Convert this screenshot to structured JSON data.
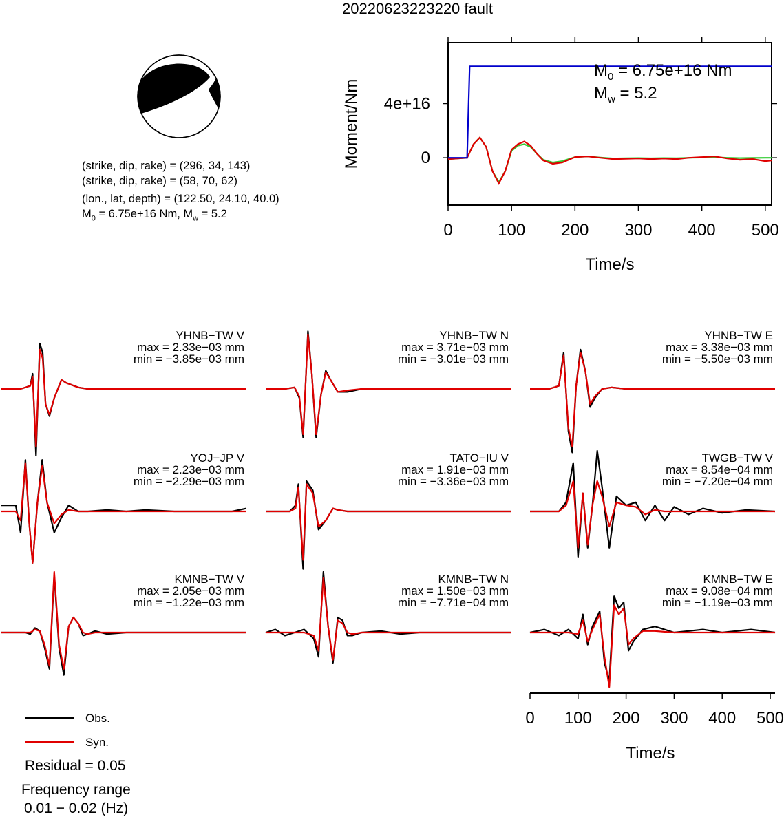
{
  "title": "20220623223220 fault",
  "info": {
    "line1": "(strike, dip, rake) = (296, 34, 143)",
    "line2": "(strike, dip, rake) = (58, 70, 62)",
    "line3": "(lon., lat, depth) = (122.50, 24.10, 40.0)",
    "m0_prefix": "M",
    "m0_sub": "0",
    "m0_value": " = 6.75e+16 Nm, M",
    "mw_sub": "w",
    "mw_value": " = 5.2"
  },
  "moment_rate": {
    "ylabel": "Moment/Nm",
    "xlabel": "Time/s",
    "m0_prefix": "M",
    "m0_sub": "0",
    "m0_text": " = 6.75e+16 Nm",
    "mw_prefix": "M",
    "mw_sub": "w",
    "mw_text": " = 5.2"
  },
  "waveform_axis": {
    "xlabel": "Time/s"
  },
  "legend": {
    "obs_label": "Obs.",
    "syn_label": "Syn.",
    "obs_color": "#000000",
    "syn_color": "#e00000",
    "residual": "Residual = 0.05",
    "freq_title": "Frequency range",
    "freq_value": "0.01 − 0.02 (Hz)"
  },
  "colors": {
    "cumulative_moment": "#0000cc",
    "moment_rate_red": "#e00000",
    "moment_rate_green": "#33cc33",
    "observed": "#000000",
    "synthetic": "#e00000"
  },
  "chart_data": [
    {
      "type": "line",
      "name": "moment_function",
      "ylabel": "Moment/Nm",
      "xlabel": "Time/s",
      "xlim": [
        0,
        510
      ],
      "ylim": [
        -3.5e+16,
        8.5e+16
      ],
      "xticks": [
        0,
        100,
        200,
        300,
        400,
        500
      ],
      "xtick_labels": [
        "0",
        "100",
        "200",
        "300",
        "400",
        "500"
      ],
      "yticks": [
        0,
        4e+16
      ],
      "ytick_labels": [
        "0",
        "4e+16"
      ],
      "series": [
        {
          "name": "",
          "x": [
            0,
            30,
            34,
            36,
            510
          ],
          "y": [
            0,
            0,
            6.75e+16,
            6.75e+16,
            6.75e+16
          ]
        },
        {
          "name": "",
          "x": [
            0,
            30,
            40,
            50,
            60,
            70,
            80,
            90,
            100,
            110,
            120,
            130,
            140,
            150,
            165,
            180,
            200,
            220,
            240,
            260,
            280,
            300,
            320,
            340,
            360,
            380,
            400,
            420,
            440,
            460,
            480,
            500,
            510
          ],
          "y": [
            -1000000000000000.0,
            0,
            1e+16,
            1.5e+16,
            8000000000000000.0,
            -1e+16,
            -1.9e+16,
            -1e+16,
            6000000000000000.0,
            1e+16,
            1.2e+16,
            9000000000000000.0,
            3000000000000000.0,
            -2000000000000000.0,
            -4500000000000000.0,
            -3500000000000000.0,
            500000000000000.0,
            1000000000000000.0,
            0.0,
            -1000000000000000.0,
            -800000000000000.0,
            -500000000000000.0,
            -1000000000000000.0,
            -600000000000000.0,
            -1000000000000000.0,
            0.0,
            500000000000000.0,
            1000000000000000.0,
            -500000000000000.0,
            -1500000000000000.0,
            -1000000000000000.0,
            -2500000000000000.0,
            -2000000000000000.0
          ]
        },
        {
          "name": "",
          "x": [
            0,
            30,
            40,
            50,
            60,
            70,
            80,
            90,
            100,
            110,
            120,
            130,
            140,
            150,
            165,
            180,
            200,
            220,
            240,
            260,
            280,
            300,
            320,
            340,
            360,
            380,
            400,
            420,
            440,
            460,
            480,
            500,
            510
          ],
          "y": [
            -1000000000000000.0,
            0,
            1e+16,
            1.5e+16,
            8000000000000000.0,
            -1e+16,
            -1.8e+16,
            -1e+16,
            5000000000000000.0,
            9000000000000000.0,
            1e+16,
            8000000000000000.0,
            3000000000000000.0,
            -1500000000000000.0,
            -3500000000000000.0,
            -2500000000000000.0,
            500000000000000.0,
            1000000000000000.0,
            200000000000000.0,
            -500000000000000.0,
            -300000000000000.0,
            -200000000000000.0,
            -400000000000000.0,
            -200000000000000.0,
            -300000000000000.0,
            0.0,
            200000000000000.0,
            400000000000000.0,
            0.0,
            -200000000000000.0,
            -100000000000000.0,
            0.0,
            0.0
          ]
        }
      ]
    },
    {
      "type": "line",
      "name": "waveforms",
      "xlabel": "Time/s",
      "xlim": [
        0,
        510
      ],
      "xticks": [
        0,
        100,
        200,
        300,
        400,
        500
      ],
      "xtick_labels": [
        "0",
        "100",
        "200",
        "300",
        "400",
        "500"
      ],
      "panels": [
        {
          "station": "YHNB−TW V",
          "max": "max = 2.33e−03 mm",
          "min": "min = −3.85e−03 mm",
          "t": [
            0,
            40,
            60,
            65,
            72,
            80,
            86,
            92,
            100,
            110,
            125,
            135,
            160,
            180,
            200,
            240,
            300,
            400,
            510
          ],
          "obs": [
            0,
            0,
            0.1,
            0.5,
            -2.2,
            1.5,
            1.2,
            -0.5,
            -0.9,
            -0.3,
            0.3,
            0.2,
            0.05,
            0,
            0,
            0,
            0,
            0,
            0
          ],
          "syn": [
            0,
            0,
            0.1,
            0.4,
            -1.9,
            1.3,
            1.0,
            -0.5,
            -0.85,
            -0.3,
            0.3,
            0.2,
            0.05,
            0,
            0,
            0,
            0,
            0,
            0
          ]
        },
        {
          "station": "YHNB−TW N",
          "max": "max = 3.71e−03 mm",
          "min": "min = −3.01e−03 mm",
          "t": [
            0,
            40,
            60,
            70,
            78,
            88,
            96,
            105,
            115,
            125,
            135,
            150,
            170,
            200,
            260,
            300,
            400,
            510
          ],
          "obs": [
            0,
            0,
            0.05,
            -0.3,
            -1.6,
            1.9,
            0.5,
            -1.6,
            -0.2,
            0.6,
            0.3,
            -0.1,
            -0.1,
            0,
            0,
            0,
            0,
            0
          ],
          "syn": [
            0,
            0,
            0.05,
            -0.25,
            -1.5,
            1.8,
            0.5,
            -1.5,
            -0.2,
            0.55,
            0.3,
            -0.1,
            -0.05,
            0,
            0,
            0,
            0,
            0
          ]
        },
        {
          "station": "YHNB−TW E",
          "max": "max = 3.38e−03 mm",
          "min": "min = −5.50e−03 mm",
          "t": [
            0,
            40,
            60,
            70,
            80,
            88,
            96,
            105,
            115,
            125,
            135,
            150,
            170,
            200,
            260,
            300,
            400,
            510
          ],
          "obs": [
            0,
            0,
            0.1,
            1.2,
            -1.4,
            -2.1,
            0.1,
            1.3,
            0.6,
            -0.6,
            -0.3,
            0.0,
            0.05,
            0,
            0,
            0,
            0,
            0
          ],
          "syn": [
            0,
            0,
            0.1,
            1.1,
            -1.3,
            -1.9,
            0.1,
            1.2,
            0.6,
            -0.5,
            -0.25,
            0.0,
            0.05,
            0,
            0,
            0,
            0,
            0
          ]
        },
        {
          "station": "YOJ−JP V",
          "max": "max = 2.23e−03 mm",
          "min": "min = −2.29e−03 mm",
          "t": [
            0,
            30,
            40,
            50,
            58,
            65,
            75,
            85,
            95,
            110,
            125,
            140,
            160,
            180,
            220,
            260,
            300,
            360,
            420,
            480,
            510
          ],
          "obs": [
            0.2,
            0.2,
            -0.7,
            1.7,
            -0.4,
            -1.7,
            0.3,
            1.7,
            0.3,
            -0.7,
            -0.2,
            0.2,
            0.0,
            0.0,
            0.05,
            0,
            0.05,
            0,
            0,
            0,
            0.1
          ],
          "syn": [
            0,
            0,
            -0.3,
            1.6,
            -0.4,
            -1.7,
            0.3,
            1.5,
            0.3,
            -0.4,
            -0.1,
            0.05,
            0.0,
            0.0,
            0,
            0,
            0,
            0,
            0,
            0,
            0
          ]
        },
        {
          "station": "TATO−IU V",
          "max": "max = 1.91e−03 mm",
          "min": "min = −3.36e−03 mm",
          "t": [
            0,
            50,
            62,
            68,
            78,
            85,
            98,
            110,
            125,
            140,
            150,
            170,
            200,
            240,
            300,
            400,
            510
          ],
          "obs": [
            0,
            0,
            0.2,
            0.9,
            -1.9,
            1.0,
            0.7,
            -0.6,
            -0.3,
            0.1,
            0.05,
            0,
            0,
            0,
            0,
            0,
            0
          ],
          "syn": [
            0,
            0,
            0.1,
            0.8,
            -1.6,
            0.9,
            0.6,
            -0.5,
            -0.3,
            0.1,
            0.05,
            0,
            0,
            0,
            0,
            0,
            0
          ]
        },
        {
          "station": "TWGB−TW V",
          "max": "max = 8.54e−04 mm",
          "min": "min = −7.20e−04 mm",
          "t": [
            0,
            60,
            75,
            90,
            100,
            110,
            120,
            130,
            140,
            150,
            165,
            180,
            200,
            220,
            240,
            260,
            280,
            300,
            330,
            360,
            400,
            450,
            510
          ],
          "obs": [
            0,
            0,
            0.3,
            1.6,
            -1.5,
            0.6,
            -1.2,
            0.2,
            2.0,
            0.8,
            -1.2,
            0.5,
            0.2,
            0.3,
            -0.3,
            0.2,
            -0.3,
            0.15,
            -0.1,
            0.1,
            -0.05,
            0.05,
            0
          ],
          "syn": [
            0,
            0,
            0.2,
            1.0,
            -1.2,
            0.6,
            -1.1,
            0.2,
            1.0,
            0.5,
            -0.5,
            0.3,
            0.2,
            0.15,
            -0.1,
            0.05,
            0,
            0,
            0,
            0,
            0,
            0,
            0
          ]
        },
        {
          "station": "KMNB−TW V",
          "max": "max = 2.05e−03 mm",
          "min": "min = −1.22e−03 mm",
          "t": [
            0,
            50,
            60,
            70,
            80,
            90,
            100,
            110,
            120,
            130,
            140,
            150,
            160,
            170,
            180,
            195,
            220,
            260,
            300,
            400,
            510
          ],
          "obs": [
            0,
            0,
            -0.05,
            0.15,
            0.05,
            -0.5,
            -1.2,
            1.9,
            -0.5,
            -1.4,
            0.2,
            0.5,
            0.3,
            -0.1,
            -0.05,
            0.05,
            -0.05,
            0,
            0,
            0,
            0
          ],
          "syn": [
            0,
            0,
            0,
            0.1,
            0.05,
            -0.4,
            -1.1,
            2.0,
            -0.4,
            -1.2,
            0.2,
            0.5,
            0.3,
            0.0,
            -0.05,
            0,
            0,
            0,
            0,
            0,
            0
          ]
        },
        {
          "station": "KMNB−TW N",
          "max": "max = 1.50e−03 mm",
          "min": "min = −7.71e−04 mm",
          "t": [
            0,
            20,
            40,
            60,
            80,
            100,
            110,
            120,
            130,
            140,
            150,
            160,
            170,
            180,
            200,
            240,
            280,
            320,
            400,
            510
          ],
          "obs": [
            0,
            0.1,
            -0.1,
            0,
            0.1,
            -0.2,
            -0.8,
            2.0,
            0.2,
            -1.0,
            0.5,
            0.4,
            -0.1,
            -0.1,
            0,
            0.05,
            -0.05,
            0,
            0,
            0
          ],
          "syn": [
            0,
            0,
            0,
            0,
            0,
            -0.1,
            -0.6,
            1.8,
            0.2,
            -0.9,
            0.4,
            0.3,
            0,
            -0.05,
            0,
            0,
            0,
            0,
            0,
            0
          ]
        },
        {
          "station": "KMNB−TW E",
          "max": "max = 9.08e−04 mm",
          "min": "min = −1.19e−03 mm",
          "t": [
            0,
            30,
            60,
            80,
            100,
            110,
            120,
            130,
            145,
            155,
            165,
            175,
            185,
            195,
            205,
            215,
            235,
            260,
            300,
            360,
            400,
            460,
            510
          ],
          "obs": [
            0,
            0.1,
            -0.1,
            0.1,
            -0.2,
            0.6,
            -0.4,
            0.2,
            0.7,
            -1.0,
            -1.6,
            1.2,
            0.8,
            1.0,
            -0.6,
            -0.3,
            0.1,
            0.2,
            0.0,
            0.1,
            0.0,
            0.1,
            0
          ],
          "syn": [
            0,
            0,
            0,
            0,
            -0.05,
            0.4,
            -0.3,
            0.1,
            0.6,
            -0.8,
            -1.8,
            0.9,
            0.6,
            0.8,
            -0.4,
            -0.2,
            0.05,
            0.05,
            0,
            0,
            0,
            0,
            0
          ]
        }
      ]
    }
  ]
}
